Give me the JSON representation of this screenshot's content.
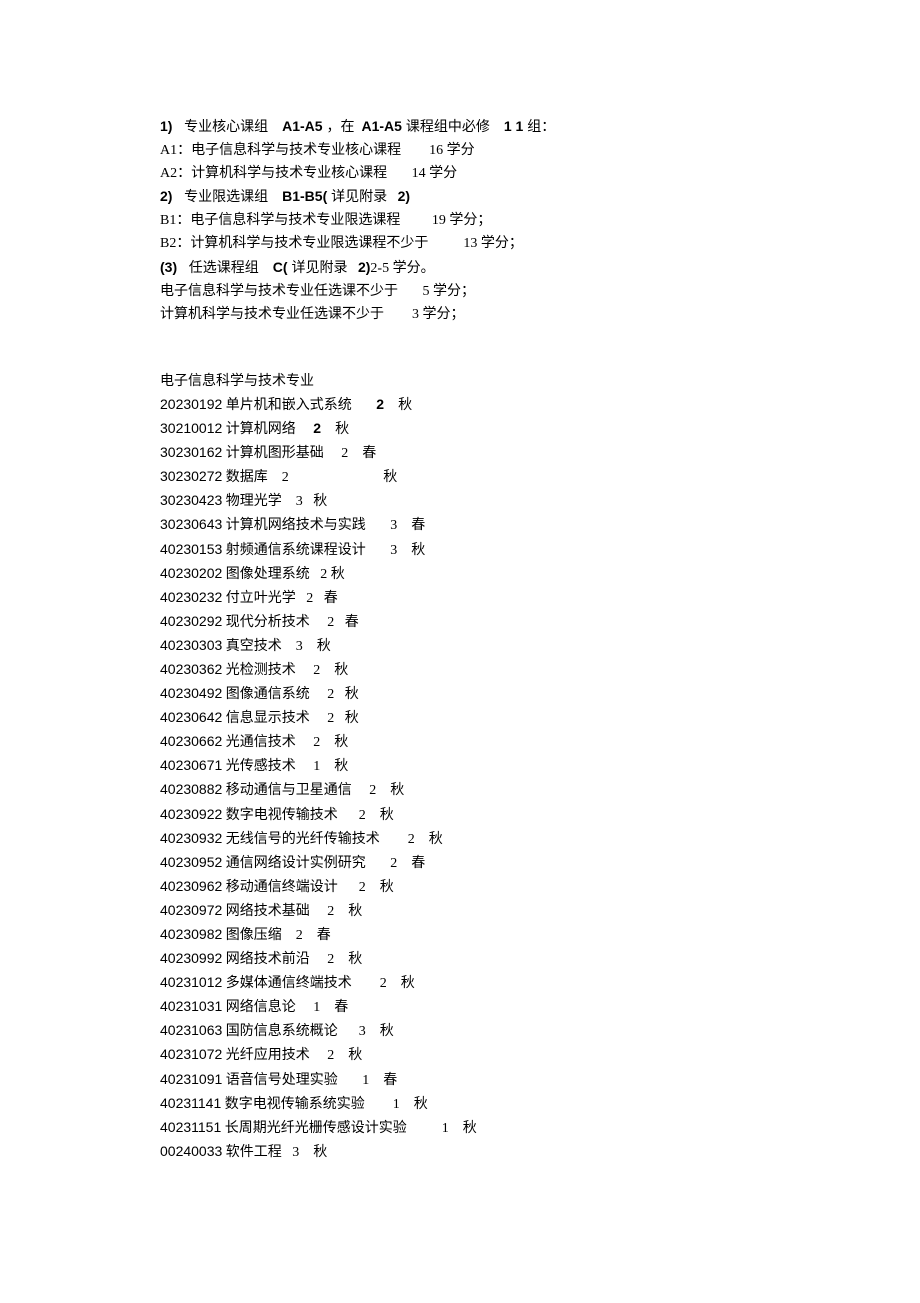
{
  "header": {
    "line1_parts": [
      {
        "t": "1)   ",
        "cls": "bold"
      },
      {
        "t": "专业核心课组    ",
        "cls": ""
      },
      {
        "t": "A1-A5 ",
        "cls": "bold"
      },
      {
        "t": "，在  ",
        "cls": ""
      },
      {
        "t": "A1-A5 ",
        "cls": "bold"
      },
      {
        "t": "课程组中必修    ",
        "cls": ""
      },
      {
        "t": "1 1 ",
        "cls": "bold"
      },
      {
        "t": "组：",
        "cls": ""
      }
    ],
    "line2": "A1：电子信息科学与技术专业核心课程        16 学分",
    "line3": "A2：计算机科学与技术专业核心课程       14 学分",
    "line4_parts": [
      {
        "t": "2)   ",
        "cls": "bold"
      },
      {
        "t": "专业限选课组    ",
        "cls": ""
      },
      {
        "t": "B1-B5( ",
        "cls": "bold"
      },
      {
        "t": "详见附录   ",
        "cls": ""
      },
      {
        "t": "2)",
        "cls": "bold"
      }
    ],
    "line5": "B1：电子信息科学与技术专业限选课程         19 学分；",
    "line6": "B2：计算机科学与技术专业限选课程不少于          13 学分；",
    "line7_parts": [
      {
        "t": "(3)   ",
        "cls": "bold"
      },
      {
        "t": "任选课程组    ",
        "cls": ""
      },
      {
        "t": "C( ",
        "cls": "bold"
      },
      {
        "t": "详见附录   ",
        "cls": ""
      },
      {
        "t": "2)",
        "cls": "bold"
      },
      {
        "t": "2-5 学分。",
        "cls": ""
      }
    ],
    "line8": "电子信息科学与技术专业任选课不少于       5 学分；",
    "line9": "计算机科学与技术专业任选课不少于        3 学分；"
  },
  "section_title": "电子信息科学与技术专业",
  "courses": [
    {
      "code": "20230192",
      "rest": " 单片机和嵌入式系统       ",
      "credits": "2",
      "term": "    秋",
      "bold_credits": true
    },
    {
      "code": "30210012",
      "rest": " 计算机网络     ",
      "credits": "2",
      "term": "    秋",
      "bold_credits": true
    },
    {
      "code": "30230162",
      "rest": " 计算机图形基础     2    春",
      "credits": "",
      "term": "",
      "bold_credits": false
    },
    {
      "code": "30230272",
      "rest": " 数据库    2                           秋",
      "credits": "",
      "term": "",
      "bold_credits": false
    },
    {
      "code": "30230423",
      "rest": " 物理光学    3   秋",
      "credits": "",
      "term": "",
      "bold_credits": false
    },
    {
      "code": "30230643",
      "rest": " 计算机网络技术与实践       3    春",
      "credits": "",
      "term": "",
      "bold_credits": false
    },
    {
      "code": "40230153",
      "rest": " 射频通信系统课程设计       3    秋",
      "credits": "",
      "term": "",
      "bold_credits": false
    },
    {
      "code": "40230202",
      "rest": " 图像处理系统   2 秋",
      "credits": "",
      "term": "",
      "bold_credits": false
    },
    {
      "code": "40230232",
      "rest": " 付立叶光学   2   春",
      "credits": "",
      "term": "",
      "bold_credits": false
    },
    {
      "code": "40230292",
      "rest": " 现代分析技术     2   春",
      "credits": "",
      "term": "",
      "bold_credits": false
    },
    {
      "code": "40230303",
      "rest": " 真空技术    3    秋",
      "credits": "",
      "term": "",
      "bold_credits": false
    },
    {
      "code": "40230362",
      "rest": " 光检测技术     2    秋",
      "credits": "",
      "term": "",
      "bold_credits": false
    },
    {
      "code": "40230492",
      "rest": " 图像通信系统     2   秋",
      "credits": "",
      "term": "",
      "bold_credits": false
    },
    {
      "code": "40230642",
      "rest": " 信息显示技术     2   秋",
      "credits": "",
      "term": "",
      "bold_credits": false
    },
    {
      "code": "40230662",
      "rest": " 光通信技术     2    秋",
      "credits": "",
      "term": "",
      "bold_credits": false
    },
    {
      "code": "40230671",
      "rest": " 光传感技术     1    秋",
      "credits": "",
      "term": "",
      "bold_credits": false
    },
    {
      "code": "40230882",
      "rest": " 移动通信与卫星通信     2    秋",
      "credits": "",
      "term": "",
      "bold_credits": false
    },
    {
      "code": "40230922",
      "rest": " 数字电视传输技术      2    秋",
      "credits": "",
      "term": "",
      "bold_credits": false
    },
    {
      "code": "40230932",
      "rest": " 无线信号的光纤传输技术        2    秋",
      "credits": "",
      "term": "",
      "bold_credits": false
    },
    {
      "code": "40230952",
      "rest": " 通信网络设计实例研究       2    春",
      "credits": "",
      "term": "",
      "bold_credits": false
    },
    {
      "code": "40230962",
      "rest": " 移动通信终端设计      2    秋",
      "credits": "",
      "term": "",
      "bold_credits": false
    },
    {
      "code": "40230972",
      "rest": " 网络技术基础     2    秋",
      "credits": "",
      "term": "",
      "bold_credits": false
    },
    {
      "code": "40230982",
      "rest": " 图像压缩    2    春",
      "credits": "",
      "term": "",
      "bold_credits": false
    },
    {
      "code": "40230992",
      "rest": " 网络技术前沿     2    秋",
      "credits": "",
      "term": "",
      "bold_credits": false
    },
    {
      "code": "40231012",
      "rest": " 多媒体通信终端技术        2    秋",
      "credits": "",
      "term": "",
      "bold_credits": false
    },
    {
      "code": "40231031",
      "rest": " 网络信息论     1    春",
      "credits": "",
      "term": "",
      "bold_credits": false
    },
    {
      "code": "40231063",
      "rest": " 国防信息系统概论      3    秋",
      "credits": "",
      "term": "",
      "bold_credits": false
    },
    {
      "code": "40231072",
      "rest": " 光纤应用技术     2    秋",
      "credits": "",
      "term": "",
      "bold_credits": false
    },
    {
      "code": "40231091",
      "rest": " 语音信号处理实验       1    春",
      "credits": "",
      "term": "",
      "bold_credits": false
    },
    {
      "code": "40231141",
      "rest": " 数字电视传输系统实验        1    秋",
      "credits": "",
      "term": "",
      "bold_credits": false
    },
    {
      "code": "40231151",
      "rest": " 长周期光纤光栅传感设计实验          1    秋",
      "credits": "",
      "term": "",
      "bold_credits": false
    },
    {
      "code": "00240033",
      "rest": " 软件工程   3    秋",
      "credits": "",
      "term": "",
      "bold_credits": false
    }
  ]
}
